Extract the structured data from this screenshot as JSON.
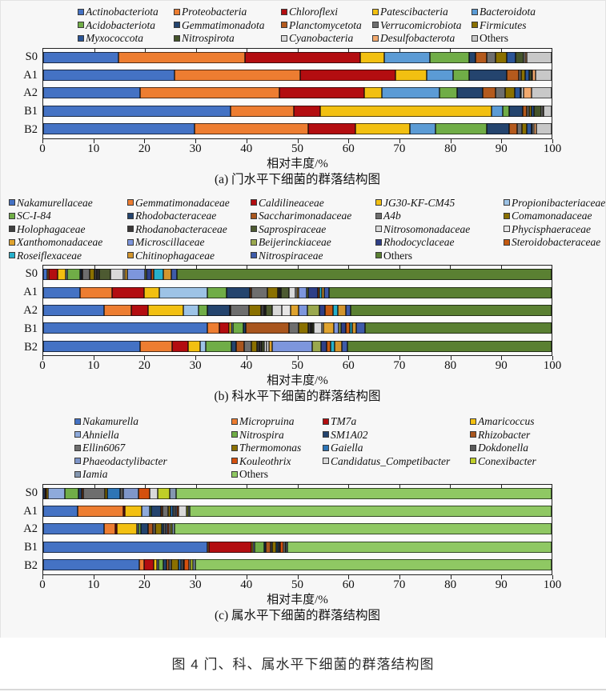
{
  "page": {
    "figure_caption": "图 4  门、科、属水平下细菌的群落结构图"
  },
  "chart_data": [
    {
      "type": "bar",
      "stacked": true,
      "orientation": "horizontal",
      "subcaption": "(a) 门水平下细菌的群落结构图",
      "xlabel": "相对丰度/%",
      "xlim": [
        0,
        100
      ],
      "xticks": [
        0,
        10,
        20,
        30,
        40,
        50,
        60,
        70,
        80,
        90,
        100
      ],
      "grid": false,
      "legend_position": "top",
      "categories": [
        "S0",
        "A1",
        "A2",
        "B1",
        "B2"
      ],
      "series": [
        {
          "name": "Actinobacteriota",
          "color": "#4472c4",
          "values": [
            14.8,
            25.9,
            19.1,
            36.8,
            29.7
          ]
        },
        {
          "name": "Proteobacteria",
          "color": "#ed7d31",
          "values": [
            24.9,
            24.7,
            27.3,
            12.5,
            22.5
          ]
        },
        {
          "name": "Chloroflexi",
          "color": "#b30d10",
          "values": [
            22.7,
            18.7,
            16.7,
            5.2,
            9.2
          ]
        },
        {
          "name": "Patescibacteria",
          "color": "#f2c011",
          "values": [
            4.7,
            6.2,
            3.5,
            33.7,
            10.7
          ]
        },
        {
          "name": "Bacteroidota",
          "color": "#5b9bd5",
          "values": [
            8.9,
            5.2,
            11.3,
            2.2,
            5.0
          ]
        },
        {
          "name": "Acidobacteriota",
          "color": "#70ad47",
          "values": [
            7.8,
            3.1,
            3.6,
            1.3,
            10.2
          ]
        },
        {
          "name": "Gemmatimonadota",
          "color": "#24446e",
          "values": [
            1.3,
            7.4,
            5.0,
            2.7,
            4.4
          ]
        },
        {
          "name": "Planctomycetota",
          "color": "#b45a1d",
          "values": [
            2.2,
            2.3,
            2.5,
            0.8,
            1.5
          ]
        },
        {
          "name": "Verrucomicrobiota",
          "color": "#6e6e6e",
          "values": [
            1.7,
            0.6,
            1.9,
            0.4,
            1.0
          ]
        },
        {
          "name": "Firmicutes",
          "color": "#8a7000",
          "values": [
            2.2,
            0.7,
            1.9,
            0.5,
            1.0
          ]
        },
        {
          "name": "Myxococcota",
          "color": "#2b5597",
          "values": [
            1.8,
            0.8,
            1.0,
            0.4,
            0.8
          ]
        },
        {
          "name": "Nitrospirota",
          "color": "#45542b",
          "values": [
            1.5,
            0.4,
            0.3,
            1.5,
            0.3
          ]
        },
        {
          "name": "Cyanobacteria",
          "color": "#d9d9d9",
          "values": [
            0.3,
            0.3,
            0.4,
            0.3,
            0.3
          ]
        },
        {
          "name": "Desulfobacterota",
          "color": "#f2a96e",
          "values": [
            0.4,
            0.5,
            1.5,
            0.2,
            0.4
          ]
        },
        {
          "name": "Others",
          "color": "#c8c8c8",
          "upright": true,
          "values": [
            4.8,
            3.2,
            4.0,
            1.5,
            3.0
          ]
        }
      ]
    },
    {
      "type": "bar",
      "stacked": true,
      "orientation": "horizontal",
      "subcaption": "(b) 科水平下细菌的群落结构图",
      "xlabel": "相对丰度/%",
      "xlim": [
        0,
        100
      ],
      "xticks": [
        0,
        10,
        20,
        30,
        40,
        50,
        60,
        70,
        80,
        90,
        100
      ],
      "grid": false,
      "legend_position": "top",
      "categories": [
        "S0",
        "A1",
        "A2",
        "B1",
        "B2"
      ],
      "series": [
        {
          "name": "Nakamurellaceae",
          "color": "#4472c4",
          "values": [
            0.8,
            7.2,
            11.9,
            32.3,
            19.1
          ]
        },
        {
          "name": "Gemmatimonadaceae",
          "color": "#ed7d31",
          "values": [
            0.3,
            6.3,
            5.5,
            2.4,
            6.2
          ]
        },
        {
          "name": "Caldilineaceae",
          "color": "#b30d10",
          "values": [
            1.8,
            6.3,
            3.3,
            1.8,
            3.2
          ]
        },
        {
          "name": "JG30-KF-CM45",
          "color": "#f2c011",
          "values": [
            1.5,
            3.1,
            6.9,
            0.5,
            2.3
          ]
        },
        {
          "name": "Propionibacteriaceae",
          "color": "#9dc3e6",
          "values": [
            0.4,
            9.4,
            2.9,
            0.4,
            1.2
          ]
        },
        {
          "name": "SC-I-84",
          "color": "#70ad47",
          "values": [
            2.4,
            3.7,
            1.8,
            2.0,
            5.0
          ]
        },
        {
          "name": "Rhodobacteraceae",
          "color": "#24446e",
          "values": [
            0.4,
            4.7,
            4.4,
            0.4,
            1.0
          ]
        },
        {
          "name": "Saccharimonadaceae",
          "color": "#a9561e",
          "values": [
            0.2,
            0.3,
            0.2,
            8.6,
            1.5
          ]
        },
        {
          "name": "A4b",
          "color": "#6e6e6e",
          "values": [
            1.4,
            3.1,
            3.5,
            1.8,
            1.5
          ]
        },
        {
          "name": "Comamonadaceae",
          "color": "#8a7000",
          "values": [
            0.9,
            2.0,
            2.5,
            2.0,
            1.0
          ]
        },
        {
          "name": "Holophagaceae",
          "color": "#404040",
          "values": [
            0.5,
            0.4,
            0.5,
            0.4,
            0.5
          ]
        },
        {
          "name": "Rhodanobacteraceae",
          "color": "#3b3838",
          "values": [
            0.4,
            0.3,
            0.4,
            0.3,
            0.5
          ]
        },
        {
          "name": "Saprospiraceae",
          "color": "#4d5a31",
          "values": [
            2.3,
            1.5,
            1.3,
            0.4,
            0.5
          ]
        },
        {
          "name": "Nitrosomonadaceae",
          "color": "#d9d9d9",
          "values": [
            2.4,
            1.3,
            1.8,
            1.5,
            0.5
          ]
        },
        {
          "name": "Phycisphaeraceae",
          "color": "#e7e6e6",
          "values": [
            0.4,
            0.4,
            1.8,
            0.4,
            0.5
          ]
        },
        {
          "name": "Xanthomonadaceae",
          "color": "#dfa32e",
          "values": [
            0.5,
            0.3,
            1.6,
            2.0,
            0.5
          ]
        },
        {
          "name": "Microscillaceae",
          "color": "#7d96dd",
          "values": [
            3.4,
            1.5,
            1.7,
            1.0,
            8.0
          ]
        },
        {
          "name": "Beijerinckiaceae",
          "color": "#9aa84e",
          "values": [
            0.4,
            0.3,
            2.3,
            0.4,
            1.7
          ]
        },
        {
          "name": "Rhodocyclaceae",
          "color": "#2e3f87",
          "values": [
            0.9,
            1.9,
            1.2,
            1.0,
            1.0
          ]
        },
        {
          "name": "Steroidobacteraceae",
          "color": "#c55a11",
          "values": [
            0.4,
            0.4,
            1.5,
            0.8,
            0.8
          ]
        },
        {
          "name": "Roseiflexaceae",
          "color": "#26b0cb",
          "values": [
            2.0,
            0.5,
            1.0,
            0.4,
            0.8
          ]
        },
        {
          "name": "Chitinophagaceae",
          "color": "#d2952e",
          "values": [
            1.5,
            0.4,
            1.5,
            0.8,
            1.5
          ]
        },
        {
          "name": "Nitrospiraceae",
          "color": "#3e5ba9",
          "values": [
            1.1,
            1.0,
            1.0,
            1.8,
            1.0
          ]
        },
        {
          "name": "Others",
          "color": "#5a8032",
          "upright": true,
          "values": [
            73.7,
            43.7,
            39.5,
            36.6,
            40.2
          ]
        }
      ]
    },
    {
      "type": "bar",
      "stacked": true,
      "orientation": "horizontal",
      "subcaption": "(c) 属水平下细菌的群落结构图",
      "xlabel": "相对丰度/%",
      "xlim": [
        0,
        100
      ],
      "xticks": [
        0,
        10,
        20,
        30,
        40,
        50,
        60,
        70,
        80,
        90,
        100
      ],
      "grid": false,
      "legend_position": "top",
      "categories": [
        "S0",
        "A1",
        "A2",
        "B1",
        "B2"
      ],
      "series": [
        {
          "name": "Nakamurella",
          "color": "#4472c4",
          "values": [
            0.3,
            6.8,
            11.9,
            32.3,
            18.9
          ]
        },
        {
          "name": "Micropruina",
          "color": "#ed7d31",
          "values": [
            0.2,
            9.0,
            2.3,
            0.3,
            1.0
          ]
        },
        {
          "name": "TM7a",
          "color": "#b30d10",
          "values": [
            0.2,
            0.2,
            0.3,
            8.4,
            1.9
          ]
        },
        {
          "name": "Amaricoccus",
          "color": "#f2c011",
          "values": [
            0.3,
            3.3,
            3.9,
            0.3,
            0.5
          ]
        },
        {
          "name": "Ahniella",
          "color": "#8eaadb",
          "values": [
            3.2,
            1.6,
            0.4,
            0.3,
            0.4
          ]
        },
        {
          "name": "Nitrospira",
          "color": "#70ad47",
          "values": [
            2.8,
            0.4,
            0.4,
            1.8,
            1.0
          ]
        },
        {
          "name": "SM1A02",
          "color": "#24446e",
          "values": [
            0.6,
            1.8,
            1.4,
            0.4,
            0.5
          ]
        },
        {
          "name": "Rhizobacter",
          "color": "#a9561e",
          "values": [
            0.3,
            0.4,
            1.0,
            1.0,
            0.6
          ]
        },
        {
          "name": "Ellin6067",
          "color": "#6e6e6e",
          "values": [
            4.2,
            1.0,
            0.5,
            0.3,
            0.4
          ]
        },
        {
          "name": "Thermomonas",
          "color": "#8a7000",
          "values": [
            0.5,
            0.6,
            1.2,
            0.8,
            1.5
          ]
        },
        {
          "name": "Gaiella",
          "color": "#2e75b6",
          "values": [
            2.6,
            0.5,
            0.4,
            0.3,
            0.4
          ]
        },
        {
          "name": "Dokdonella",
          "color": "#595959",
          "values": [
            0.5,
            0.4,
            0.4,
            0.3,
            0.4
          ]
        },
        {
          "name": "Phaeodactylibacter",
          "color": "#7f96c9",
          "values": [
            3.0,
            0.3,
            0.3,
            0.2,
            0.3
          ]
        },
        {
          "name": "Kouleothrix",
          "color": "#d4500e",
          "values": [
            2.3,
            0.3,
            0.3,
            0.6,
            0.8
          ]
        },
        {
          "name": "Candidatus_Competibacter",
          "color": "#d9d9d9",
          "values": [
            1.5,
            1.6,
            0.4,
            0.3,
            0.4
          ]
        },
        {
          "name": "Conexibacter",
          "color": "#bfce28",
          "values": [
            2.4,
            0.3,
            0.3,
            0.2,
            0.5
          ]
        },
        {
          "name": "Iamia",
          "color": "#8497b0",
          "values": [
            1.2,
            0.3,
            0.4,
            0.3,
            0.4
          ]
        },
        {
          "name": "Others",
          "color": "#8fc863",
          "upright": true,
          "values": [
            73.9,
            71.2,
            74.2,
            51.9,
            70.1
          ]
        }
      ]
    }
  ]
}
